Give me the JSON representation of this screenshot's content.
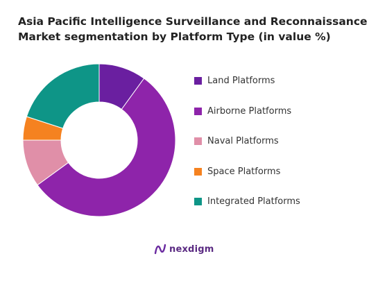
{
  "chart_data": {
    "type": "pie",
    "subtype": "donut",
    "title_lines": [
      "Asia Pacific Intelligence Surveillance and Reconnaissance",
      "Market segmentation by Platform Type (in value %)"
    ],
    "categories": [
      "Land Platforms",
      "Airborne Platforms",
      "Naval Platforms",
      "Space Platforms",
      "Integrated Platforms"
    ],
    "values": [
      10,
      55,
      10,
      5,
      20
    ],
    "colors": [
      "#6a1fa0",
      "#8e24aa",
      "#e08fa8",
      "#f58220",
      "#0e9587"
    ],
    "legend_position": "right"
  },
  "branding": {
    "logo_text": "nexdigm",
    "logo_icon": "nexdigm-wave-icon",
    "logo_color": "#5a2a82"
  }
}
